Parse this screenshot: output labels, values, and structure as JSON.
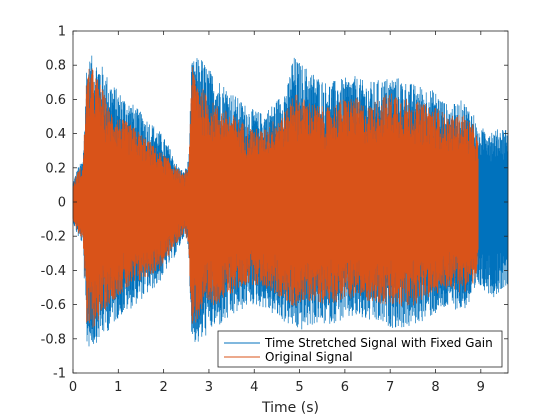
{
  "chart_data": {
    "type": "line",
    "title": "",
    "xlabel": "Time (s)",
    "ylabel": "",
    "xlim": [
      0,
      9.6
    ],
    "ylim": [
      -1,
      1
    ],
    "xticks": [
      0,
      1,
      2,
      3,
      4,
      5,
      6,
      7,
      8,
      9
    ],
    "yticks": [
      -1,
      -0.8,
      -0.6,
      -0.4,
      -0.2,
      0,
      0.2,
      0.4,
      0.6,
      0.8,
      1
    ],
    "xtick_labels": [
      "0",
      "1",
      "2",
      "3",
      "4",
      "5",
      "6",
      "7",
      "8",
      "9"
    ],
    "ytick_labels": [
      "-1",
      "-0.8",
      "-0.6",
      "-0.4",
      "-0.2",
      "0",
      "0.2",
      "0.4",
      "0.6",
      "0.8",
      "1"
    ],
    "grid": false,
    "legend_position": "bottom-right",
    "series": [
      {
        "name": "Time Stretched Signal with Fixed Gain",
        "color": "#0072BD",
        "envelope": {
          "x": [
            0,
            0.1,
            0.22,
            0.3,
            0.4,
            0.6,
            0.8,
            1.0,
            1.3,
            1.6,
            1.9,
            2.1,
            2.3,
            2.45,
            2.55,
            2.62,
            2.8,
            3.0,
            3.3,
            3.6,
            3.9,
            4.2,
            4.5,
            4.75,
            4.85,
            5.0,
            5.3,
            5.6,
            5.9,
            6.2,
            6.5,
            6.8,
            7.1,
            7.4,
            7.7,
            8.0,
            8.3,
            8.6,
            8.85,
            8.95,
            9.1,
            9.3,
            9.5,
            9.6
          ],
          "upper": [
            0.12,
            0.2,
            0.25,
            0.8,
            0.86,
            0.82,
            0.72,
            0.65,
            0.58,
            0.5,
            0.42,
            0.34,
            0.22,
            0.18,
            0.25,
            0.82,
            0.86,
            0.78,
            0.7,
            0.62,
            0.55,
            0.52,
            0.6,
            0.7,
            0.86,
            0.82,
            0.76,
            0.7,
            0.72,
            0.74,
            0.7,
            0.72,
            0.74,
            0.7,
            0.68,
            0.65,
            0.56,
            0.6,
            0.52,
            0.4,
            0.45,
            0.42,
            0.44,
            0.44
          ],
          "lower": [
            -0.12,
            -0.2,
            -0.25,
            -0.85,
            -0.86,
            -0.8,
            -0.75,
            -0.68,
            -0.62,
            -0.55,
            -0.48,
            -0.38,
            -0.3,
            -0.2,
            -0.28,
            -0.82,
            -0.84,
            -0.76,
            -0.72,
            -0.66,
            -0.6,
            -0.62,
            -0.68,
            -0.72,
            -0.74,
            -0.76,
            -0.72,
            -0.72,
            -0.7,
            -0.68,
            -0.7,
            -0.72,
            -0.74,
            -0.74,
            -0.7,
            -0.66,
            -0.62,
            -0.64,
            -0.58,
            -0.5,
            -0.52,
            -0.56,
            -0.5,
            -0.5
          ]
        }
      },
      {
        "name": "Original Signal",
        "color": "#D95319",
        "envelope": {
          "x": [
            0,
            0.1,
            0.22,
            0.3,
            0.4,
            0.6,
            0.8,
            1.0,
            1.3,
            1.6,
            1.9,
            2.1,
            2.3,
            2.45,
            2.55,
            2.62,
            2.8,
            3.0,
            3.3,
            3.6,
            3.9,
            4.2,
            4.5,
            4.75,
            4.85,
            5.0,
            5.3,
            5.6,
            5.9,
            6.2,
            6.5,
            6.8,
            7.1,
            7.4,
            7.7,
            8.0,
            8.3,
            8.6,
            8.85,
            8.95
          ],
          "upper": [
            0.1,
            0.18,
            0.22,
            0.76,
            0.8,
            0.7,
            0.55,
            0.5,
            0.45,
            0.38,
            0.3,
            0.26,
            0.2,
            0.16,
            0.22,
            0.8,
            0.7,
            0.6,
            0.55,
            0.5,
            0.44,
            0.42,
            0.5,
            0.55,
            0.66,
            0.62,
            0.58,
            0.55,
            0.6,
            0.62,
            0.56,
            0.62,
            0.65,
            0.6,
            0.58,
            0.56,
            0.5,
            0.52,
            0.45,
            0.35
          ],
          "lower": [
            -0.1,
            -0.18,
            -0.22,
            -0.74,
            -0.76,
            -0.68,
            -0.6,
            -0.55,
            -0.5,
            -0.45,
            -0.4,
            -0.33,
            -0.24,
            -0.18,
            -0.24,
            -0.74,
            -0.68,
            -0.62,
            -0.58,
            -0.52,
            -0.48,
            -0.5,
            -0.55,
            -0.6,
            -0.62,
            -0.6,
            -0.58,
            -0.6,
            -0.58,
            -0.56,
            -0.58,
            -0.6,
            -0.62,
            -0.62,
            -0.58,
            -0.55,
            -0.5,
            -0.54,
            -0.48,
            -0.4
          ]
        }
      }
    ]
  }
}
